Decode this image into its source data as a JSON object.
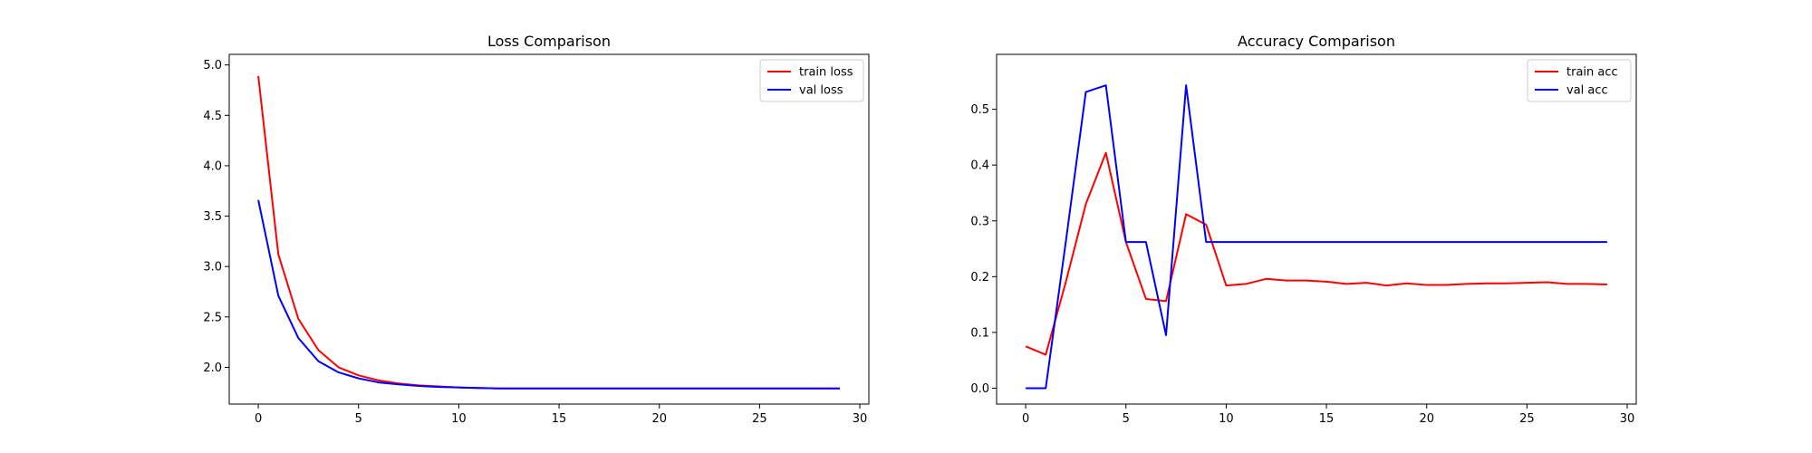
{
  "chart_data": [
    {
      "type": "line",
      "title": "Loss Comparison",
      "xlabel": "",
      "ylabel": "",
      "xlim": [
        -1.45,
        30.45
      ],
      "ylim": [
        1.635,
        5.105
      ],
      "x_ticks": [
        0,
        5,
        10,
        15,
        20,
        25,
        30
      ],
      "y_ticks": [
        2.0,
        2.5,
        3.0,
        3.5,
        4.0,
        4.5,
        5.0
      ],
      "x_tick_labels": [
        "0",
        "5",
        "10",
        "15",
        "20",
        "25",
        "30"
      ],
      "y_tick_labels": [
        "2.0",
        "2.5",
        "3.0",
        "3.5",
        "4.0",
        "4.5",
        "5.0"
      ],
      "x": [
        0,
        1,
        2,
        3,
        4,
        5,
        6,
        7,
        8,
        9,
        10,
        11,
        12,
        13,
        14,
        15,
        16,
        17,
        18,
        19,
        20,
        21,
        22,
        23,
        24,
        25,
        26,
        27,
        28,
        29
      ],
      "series": [
        {
          "name": "train loss",
          "color": "#ff0000",
          "values": [
            4.89,
            3.12,
            2.48,
            2.17,
            2.0,
            1.92,
            1.87,
            1.84,
            1.82,
            1.81,
            1.8,
            1.795,
            1.79,
            1.79,
            1.79,
            1.79,
            1.79,
            1.79,
            1.79,
            1.79,
            1.79,
            1.79,
            1.79,
            1.79,
            1.79,
            1.79,
            1.79,
            1.79,
            1.79,
            1.79
          ]
        },
        {
          "name": "val loss",
          "color": "#0000ff",
          "values": [
            3.66,
            2.71,
            2.29,
            2.06,
            1.95,
            1.89,
            1.85,
            1.83,
            1.815,
            1.805,
            1.8,
            1.795,
            1.79,
            1.79,
            1.79,
            1.79,
            1.79,
            1.79,
            1.79,
            1.79,
            1.79,
            1.79,
            1.79,
            1.79,
            1.79,
            1.79,
            1.79,
            1.79,
            1.79,
            1.79
          ]
        }
      ],
      "legend": "top-right",
      "grid": false
    },
    {
      "type": "line",
      "title": "Accuracy Comparison",
      "xlabel": "",
      "ylabel": "",
      "xlim": [
        -1.45,
        30.45
      ],
      "ylim": [
        -0.0285,
        0.5985
      ],
      "x_ticks": [
        0,
        5,
        10,
        15,
        20,
        25,
        30
      ],
      "y_ticks": [
        0.0,
        0.1,
        0.2,
        0.3,
        0.4,
        0.5
      ],
      "x_tick_labels": [
        "0",
        "5",
        "10",
        "15",
        "20",
        "25",
        "30"
      ],
      "y_tick_labels": [
        "0.0",
        "0.1",
        "0.2",
        "0.3",
        "0.4",
        "0.5"
      ],
      "x": [
        0,
        1,
        2,
        3,
        4,
        5,
        6,
        7,
        8,
        9,
        10,
        11,
        12,
        13,
        14,
        15,
        16,
        17,
        18,
        19,
        20,
        21,
        22,
        23,
        24,
        25,
        26,
        27,
        28,
        29
      ],
      "series": [
        {
          "name": "train acc",
          "color": "#ff0000",
          "values": [
            0.075,
            0.06,
            0.19,
            0.33,
            0.422,
            0.262,
            0.16,
            0.156,
            0.312,
            0.293,
            0.184,
            0.187,
            0.196,
            0.193,
            0.193,
            0.191,
            0.187,
            0.189,
            0.184,
            0.188,
            0.185,
            0.185,
            0.187,
            0.188,
            0.188,
            0.189,
            0.19,
            0.187,
            0.187,
            0.186
          ]
        },
        {
          "name": "val acc",
          "color": "#0000ff",
          "values": [
            0.0,
            0.0,
            0.262,
            0.531,
            0.543,
            0.262,
            0.262,
            0.095,
            0.543,
            0.262,
            0.262,
            0.262,
            0.262,
            0.262,
            0.262,
            0.262,
            0.262,
            0.262,
            0.262,
            0.262,
            0.262,
            0.262,
            0.262,
            0.262,
            0.262,
            0.262,
            0.262,
            0.262,
            0.262,
            0.262
          ]
        }
      ],
      "legend": "top-right",
      "grid": false
    }
  ]
}
